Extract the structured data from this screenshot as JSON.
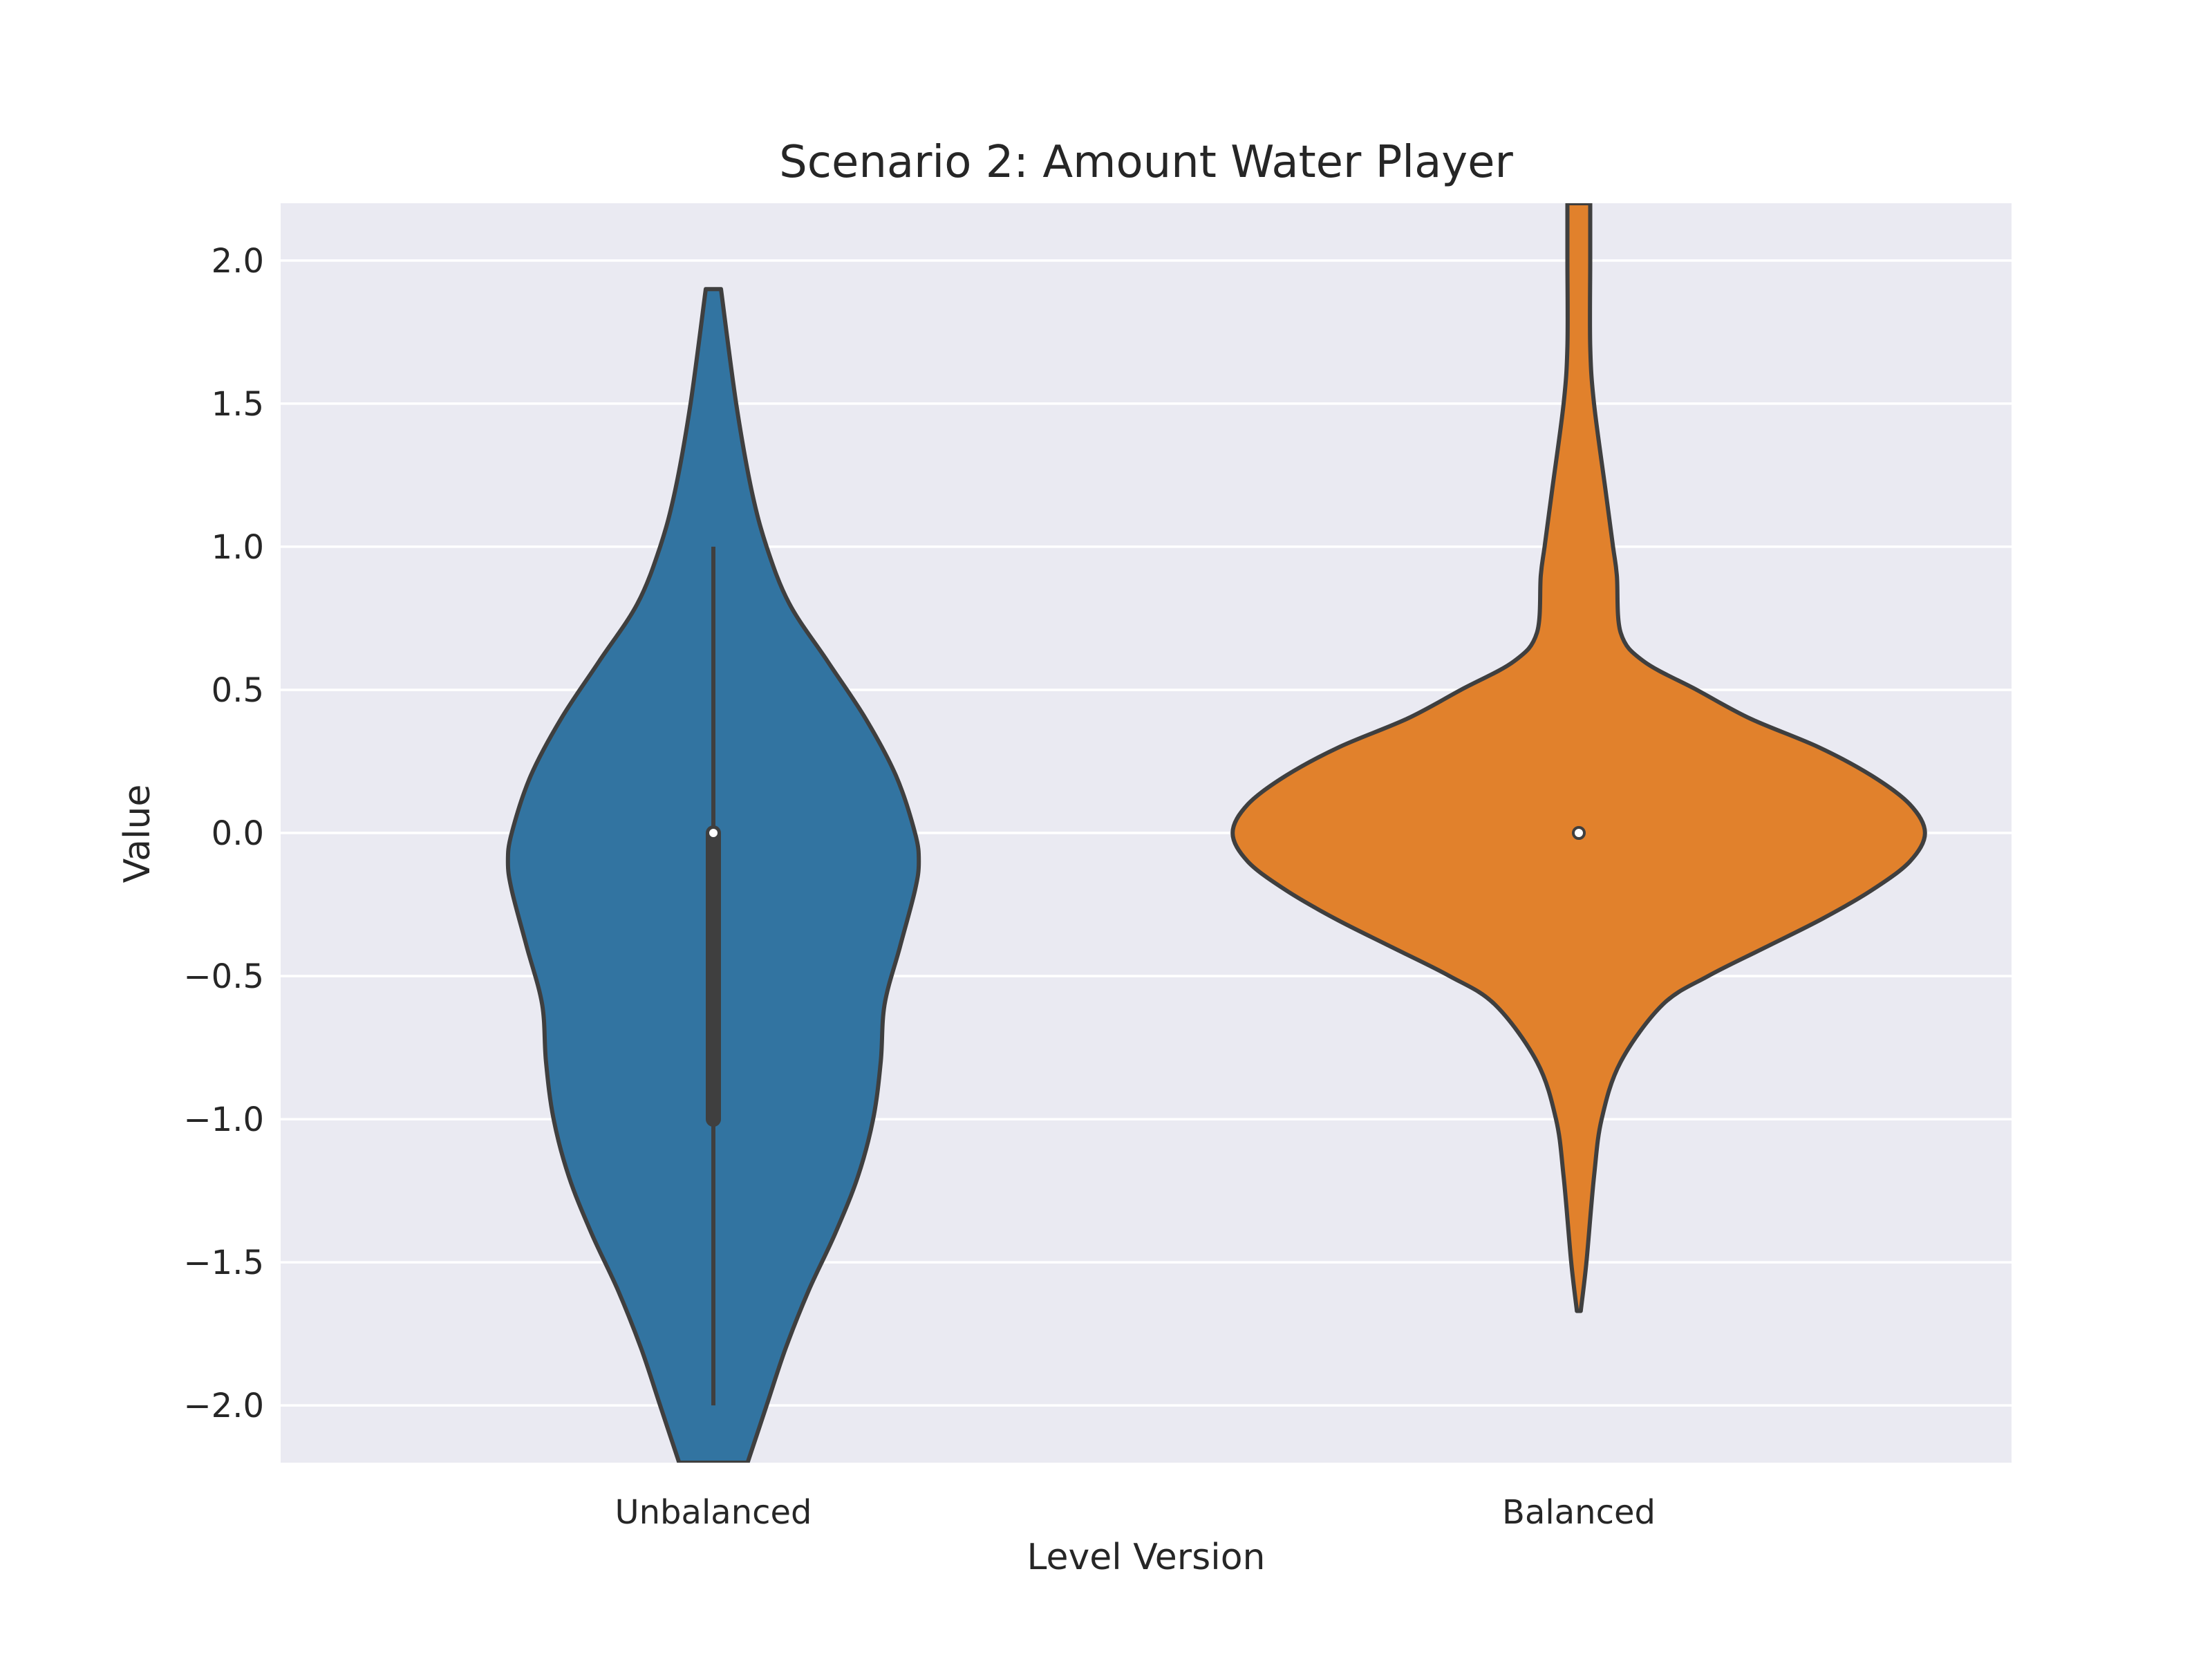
{
  "chart_data": {
    "type": "violin",
    "title": "Scenario 2: Amount Water Player",
    "xlabel": "Level Version",
    "ylabel": "Value",
    "ylim": [
      -2.2,
      2.2
    ],
    "yticks": [
      2.0,
      1.5,
      1.0,
      0.5,
      0.0,
      -0.5,
      -1.0,
      -1.5,
      -2.0
    ],
    "ytick_labels": [
      "2.0",
      "1.5",
      "1.0",
      "0.5",
      "0.0",
      "−0.5",
      "−1.0",
      "−1.5",
      "−2.0"
    ],
    "categories": [
      "Unbalanced",
      "Balanced"
    ],
    "grid": true,
    "background_color": "#eaeaf2",
    "edge_color": "#3f3f3f",
    "series": [
      {
        "category": "Unbalanced",
        "color": "#3274a1",
        "min": -2.0,
        "q1": -1.0,
        "median": 0.0,
        "q3": 0.0,
        "max": 1.0,
        "density": [
          [
            -2.2,
            0.09
          ],
          [
            -2.0,
            0.14
          ],
          [
            -1.8,
            0.19
          ],
          [
            -1.6,
            0.25
          ],
          [
            -1.4,
            0.32
          ],
          [
            -1.2,
            0.38
          ],
          [
            -1.0,
            0.42
          ],
          [
            -0.8,
            0.44
          ],
          [
            -0.6,
            0.45
          ],
          [
            -0.4,
            0.49
          ],
          [
            -0.2,
            0.53
          ],
          [
            -0.1,
            0.54
          ],
          [
            0.0,
            0.53
          ],
          [
            0.2,
            0.48
          ],
          [
            0.4,
            0.4
          ],
          [
            0.6,
            0.3
          ],
          [
            0.8,
            0.2
          ],
          [
            1.0,
            0.14
          ],
          [
            1.2,
            0.1
          ],
          [
            1.5,
            0.06
          ],
          [
            1.9,
            0.02
          ]
        ]
      },
      {
        "category": "Balanced",
        "color": "#e1812c",
        "min": 0.0,
        "q1": 0.0,
        "median": 0.0,
        "q3": 0.0,
        "max": 0.0,
        "density": [
          [
            -1.67,
            0.005
          ],
          [
            -1.5,
            0.02
          ],
          [
            -1.2,
            0.04
          ],
          [
            -1.0,
            0.06
          ],
          [
            -0.8,
            0.11
          ],
          [
            -0.6,
            0.22
          ],
          [
            -0.5,
            0.34
          ],
          [
            -0.4,
            0.49
          ],
          [
            -0.3,
            0.64
          ],
          [
            -0.2,
            0.77
          ],
          [
            -0.1,
            0.87
          ],
          [
            0.0,
            0.91
          ],
          [
            0.1,
            0.87
          ],
          [
            0.2,
            0.77
          ],
          [
            0.3,
            0.63
          ],
          [
            0.4,
            0.45
          ],
          [
            0.5,
            0.31
          ],
          [
            0.6,
            0.17
          ],
          [
            0.7,
            0.11
          ],
          [
            0.9,
            0.1
          ],
          [
            1.0,
            0.09
          ],
          [
            1.2,
            0.07
          ],
          [
            1.5,
            0.04
          ],
          [
            1.7,
            0.03
          ],
          [
            2.0,
            0.03
          ],
          [
            2.2,
            0.03
          ]
        ]
      }
    ]
  }
}
